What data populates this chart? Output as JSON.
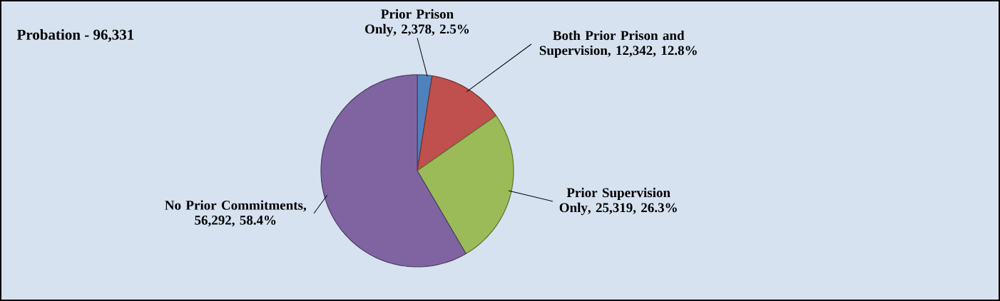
{
  "chart_data": {
    "type": "pie",
    "title": "Probation - 96,331",
    "categories": [
      "Prior Prison Only",
      "Both Prior Prison and Supervision",
      "Prior Supervision Only",
      "No Prior Commitments"
    ],
    "values": [
      2378,
      12342,
      25319,
      56292
    ],
    "value_labels": [
      ", 2,378, 2.5%",
      ",  12,342, 12.8%",
      ",  25,319, 26.3%",
      ", 56,292, 58.4%"
    ],
    "colors": [
      "#4f81bd",
      "#c0504d",
      "#9bbb59",
      "#8064a2"
    ]
  }
}
